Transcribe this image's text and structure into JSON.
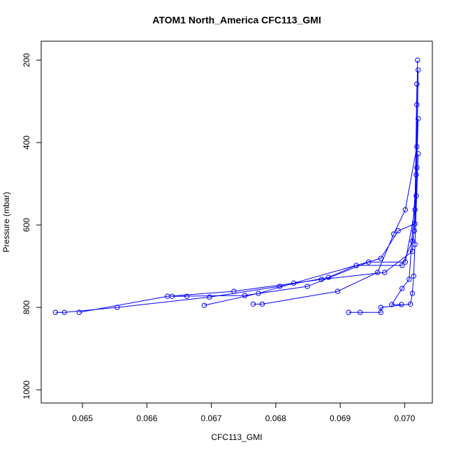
{
  "chart_data": {
    "type": "scatter",
    "title": "ATOM1 North_America CFC113_GMI",
    "x_label": "CFC113_GMI",
    "y_label": "Pressure (mbar)",
    "color": "#0000ff",
    "lines": true,
    "xlim": [
      0.06436,
      0.07043
    ],
    "ylim": [
      1032,
      154
    ],
    "xticks": [
      0.065,
      0.066,
      0.067,
      0.068,
      0.069,
      {
        "value": 0.07,
        "label": "0.070"
      }
    ],
    "yticks": [
      200,
      400,
      600,
      800,
      1000
    ],
    "profiles": [
      {
        "x": [
          0.0702,
          0.07019,
          0.07018,
          0.07015,
          0.07012,
          0.06996,
          0.06925,
          0.06882,
          0.06806,
          0.06697,
          0.06554,
          0.06472,
          0.06458
        ],
        "y": [
          200,
          308,
          478,
          614,
          639,
          698,
          698,
          727,
          749,
          775,
          800,
          812,
          812
        ]
      },
      {
        "x": [
          0.07021,
          0.07018,
          0.07012,
          0.06969,
          0.06871,
          0.06735,
          0.06632,
          0.06495
        ],
        "y": [
          224,
          529,
          664,
          715,
          732,
          761,
          773,
          812
        ]
      },
      {
        "x": [
          0.07019,
          0.07016,
          0.07001,
          0.06944,
          0.06849,
          0.06752,
          0.06639,
          0.06662
        ],
        "y": [
          258,
          563,
          690,
          690,
          749,
          771,
          773,
          773
        ]
      },
      {
        "x": [
          0.07021,
          0.07016,
          0.0699,
          0.06963,
          0.06828,
          0.06773,
          0.06689
        ],
        "y": [
          342,
          597,
          614,
          681,
          741,
          766,
          795
        ]
      },
      {
        "x": [
          0.07019,
          0.07001,
          0.06983,
          0.06958,
          0.06896,
          0.06779,
          0.06765
        ],
        "y": [
          410,
          563,
          622,
          715,
          761,
          792,
          792
        ]
      },
      {
        "x": [
          0.07021,
          0.07016,
          0.07014,
          0.07012,
          0.07009,
          0.06963,
          0.06963,
          0.06931,
          0.06913
        ],
        "y": [
          427,
          647,
          724,
          766,
          792,
          800,
          812,
          812,
          812
        ]
      },
      {
        "x": [
          0.07019,
          0.07007,
          0.06996,
          0.0698,
          0.06995
        ],
        "y": [
          461,
          732,
          754,
          793,
          793
        ]
      }
    ]
  }
}
